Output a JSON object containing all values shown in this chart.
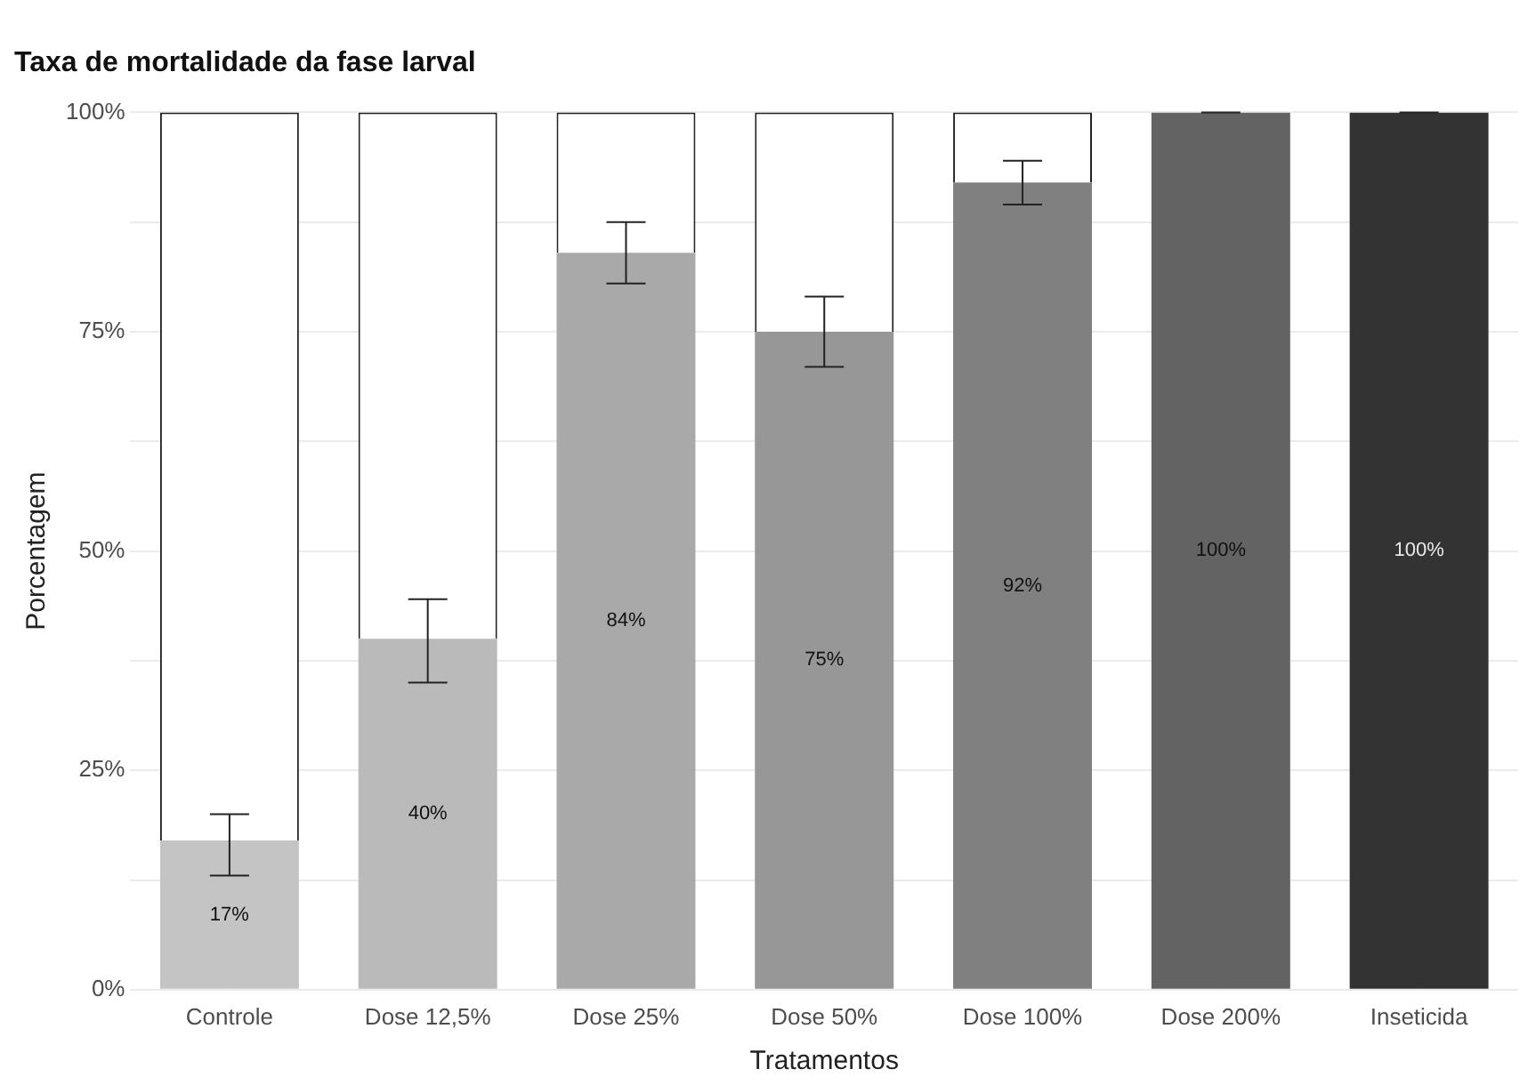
{
  "chart_data": {
    "type": "bar",
    "title": "Taxa de mortalidade da fase larval",
    "xlabel": "Tratamentos",
    "ylabel": "Porcentagem",
    "categories": [
      "Controle",
      "Dose 12,5%",
      "Dose 25%",
      "Dose 50%",
      "Dose 100%",
      "Dose 200%",
      "Inseticida"
    ],
    "stacked": true,
    "ylim": [
      0,
      100
    ],
    "yticks": [
      {
        "value": 0,
        "label": "0%"
      },
      {
        "value": 12.5,
        "label": null
      },
      {
        "value": 25,
        "label": "25%"
      },
      {
        "value": 37.5,
        "label": null
      },
      {
        "value": 50,
        "label": "50%"
      },
      {
        "value": 62.5,
        "label": null
      },
      {
        "value": 75,
        "label": "75%"
      },
      {
        "value": 87.5,
        "label": null
      },
      {
        "value": 100,
        "label": "100%"
      }
    ],
    "grid": true,
    "legend": false,
    "series": [
      {
        "colors": [
          "#c4c4c4",
          "#bababa",
          "#a9a9a9",
          "#979797",
          "#808080",
          "#636363",
          "#333333"
        ],
        "values": [
          17,
          40,
          84,
          75,
          92,
          100,
          100
        ],
        "value_labels": [
          "17%",
          "40%",
          "84%",
          "75%",
          "92%",
          "100%",
          "100%"
        ],
        "errors": [
          [
            13,
            20
          ],
          [
            35,
            44.5
          ],
          [
            80.5,
            87.5
          ],
          [
            71,
            79
          ],
          [
            89.5,
            94.5
          ],
          [
            100,
            100
          ],
          [
            100,
            100
          ]
        ]
      },
      {
        "color": "#ffffff",
        "values": [
          83,
          60,
          16,
          25,
          8,
          0,
          0
        ]
      }
    ]
  }
}
